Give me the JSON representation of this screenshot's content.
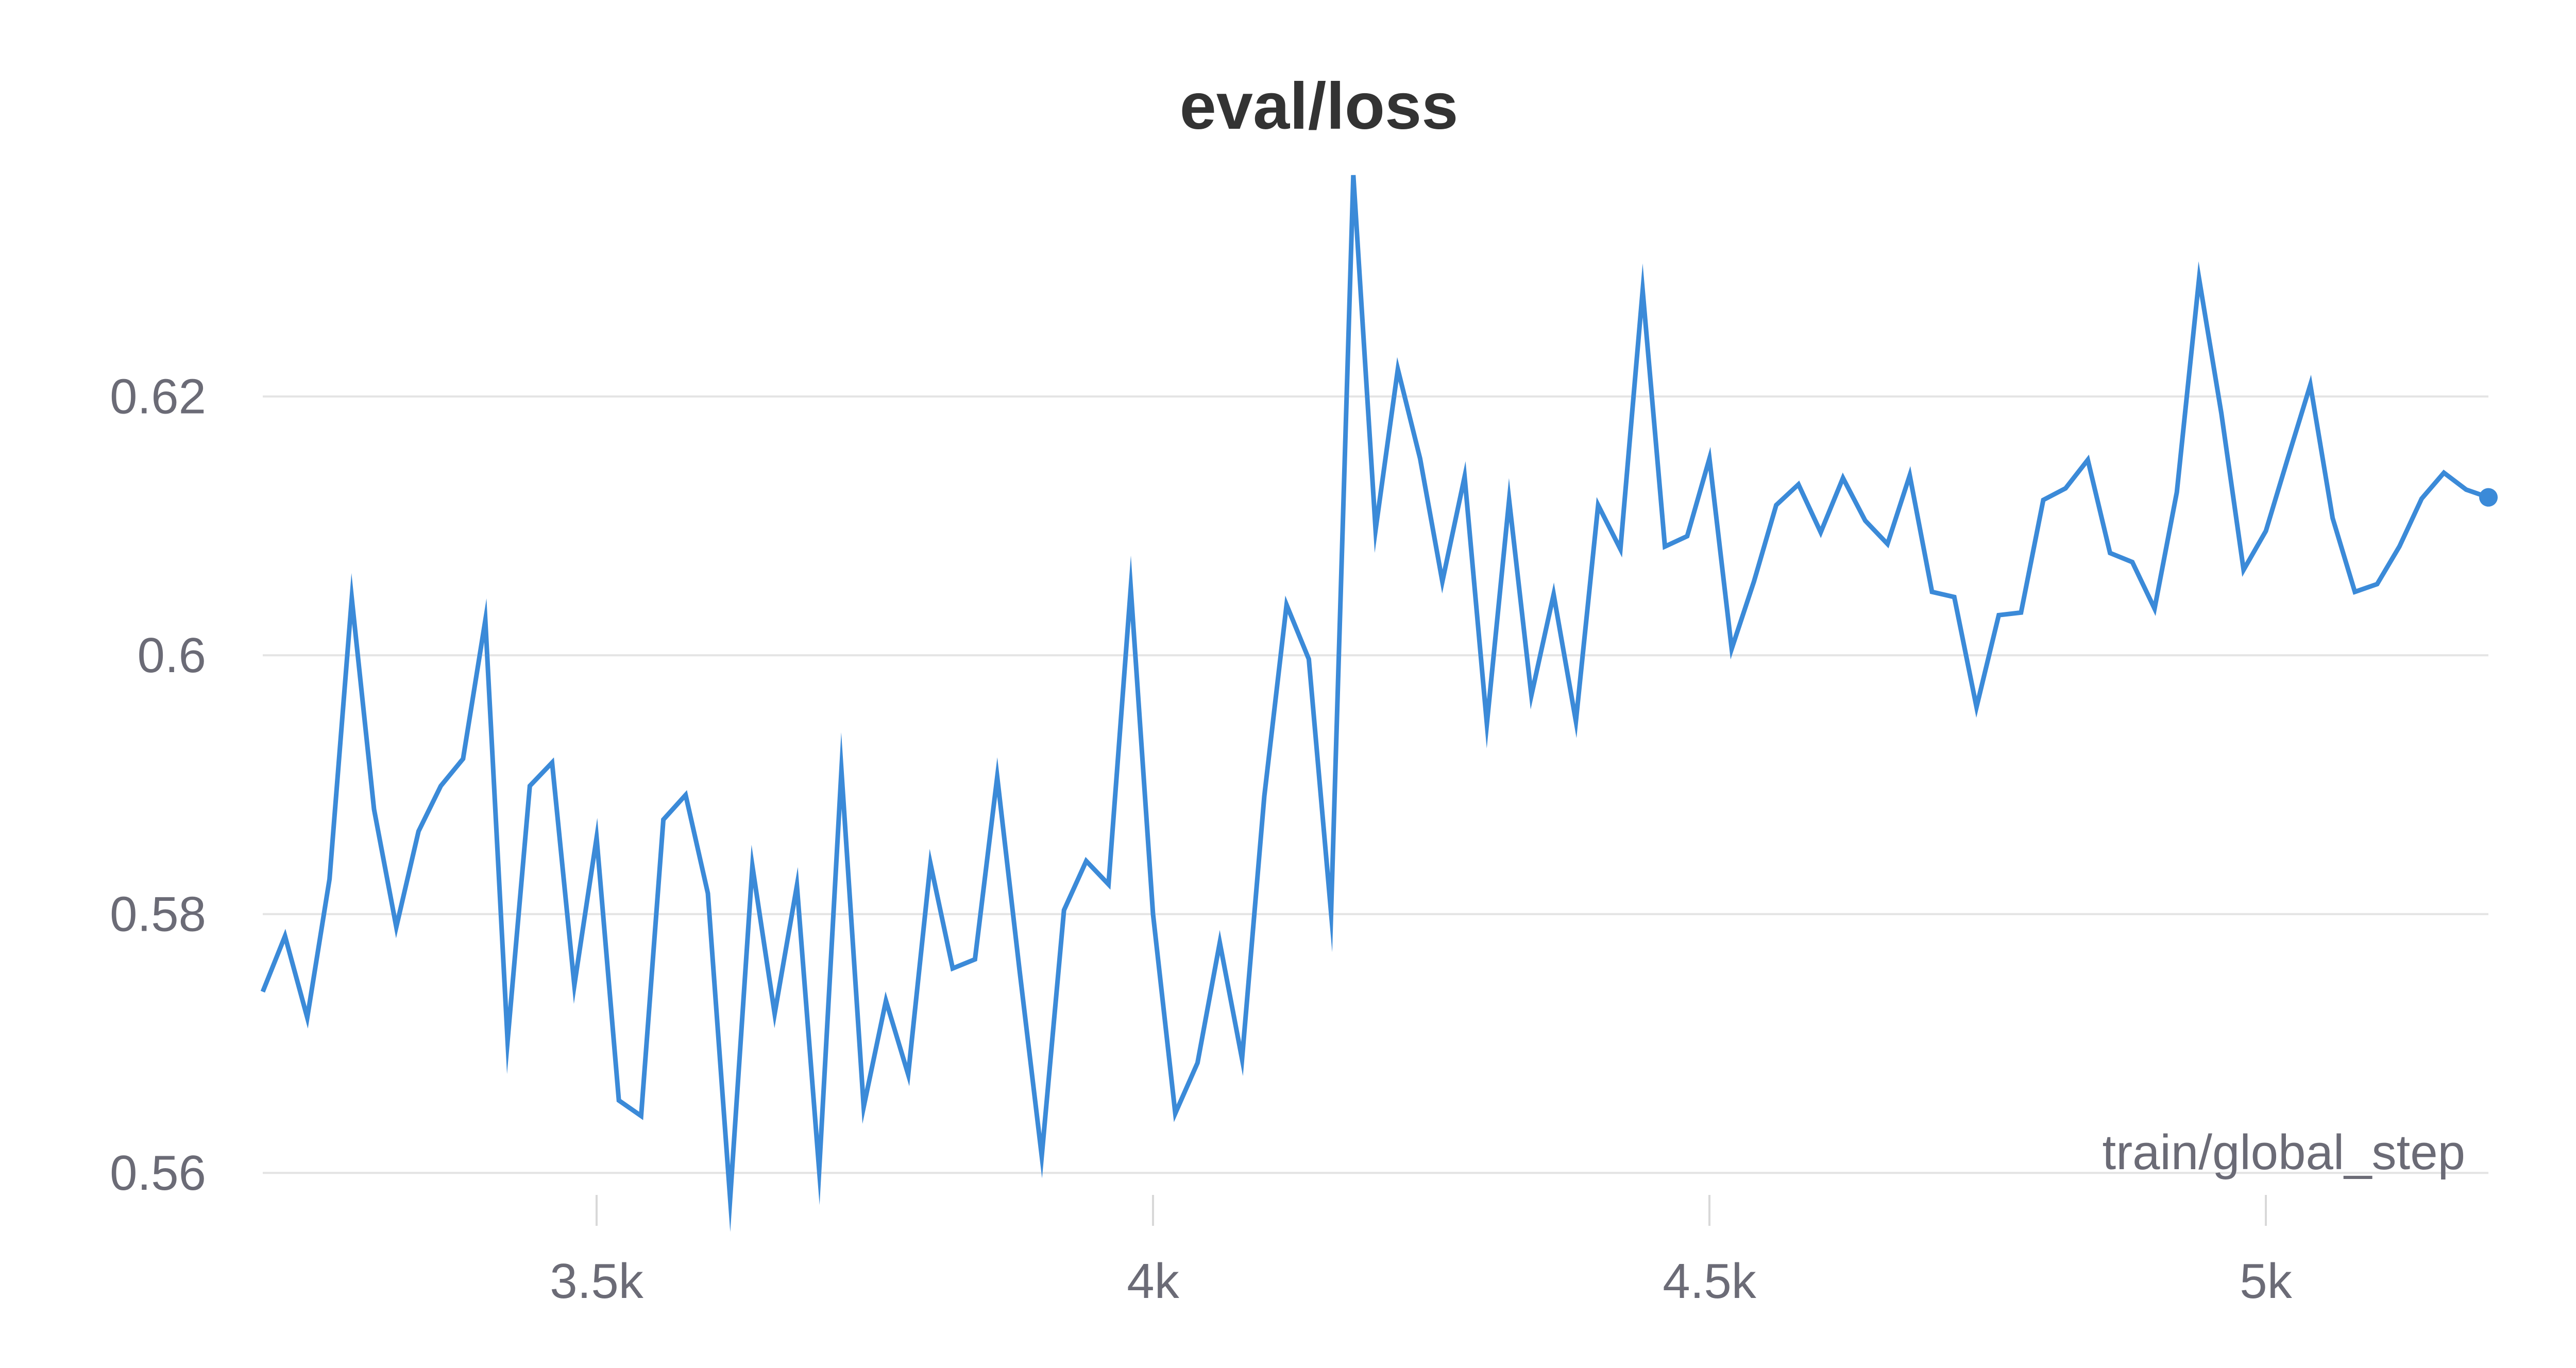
{
  "chart_data": {
    "type": "line",
    "title": "eval/loss",
    "xlabel": "train/global_step",
    "ylabel": "",
    "xlim": [
      3200,
      5200
    ],
    "ylim": [
      0.5575,
      0.6375
    ],
    "grid": true,
    "legend": "none",
    "x_ticks": [
      {
        "value": 3500,
        "label": "3.5k"
      },
      {
        "value": 4000,
        "label": "4k"
      },
      {
        "value": 4500,
        "label": "4.5k"
      },
      {
        "value": 5000,
        "label": "5k"
      }
    ],
    "y_ticks": [
      {
        "value": 0.56,
        "label": "0.56"
      },
      {
        "value": 0.58,
        "label": "0.58"
      },
      {
        "value": 0.6,
        "label": "0.6"
      },
      {
        "value": 0.62,
        "label": "0.62"
      }
    ],
    "series": [
      {
        "color": "#3b8ad8",
        "x": [
          3200,
          3220,
          3240,
          3260,
          3280,
          3300,
          3320,
          3340,
          3360,
          3380,
          3400,
          3420,
          3440,
          3460,
          3480,
          3500,
          3520,
          3540,
          3560,
          3580,
          3600,
          3620,
          3640,
          3660,
          3680,
          3700,
          3720,
          3740,
          3760,
          3780,
          3800,
          3820,
          3840,
          3860,
          3880,
          3900,
          3920,
          3940,
          3960,
          3980,
          4000,
          4020,
          4040,
          4060,
          4080,
          4100,
          4120,
          4140,
          4160,
          4180,
          4200,
          4220,
          4240,
          4260,
          4280,
          4300,
          4320,
          4340,
          4360,
          4380,
          4400,
          4420,
          4440,
          4460,
          4480,
          4500,
          4520,
          4540,
          4560,
          4580,
          4600,
          4620,
          4640,
          4660,
          4680,
          4700,
          4720,
          4740,
          4760,
          4780,
          4800,
          4820,
          4840,
          4860,
          4880,
          4900,
          4920,
          4940,
          4960,
          4980,
          5000,
          5020,
          5040,
          5060,
          5080,
          5100,
          5120,
          5140,
          5160,
          5180,
          5200
        ],
        "y": [
          0.574,
          0.5783,
          0.572,
          0.5827,
          0.6044,
          0.5881,
          0.579,
          0.5864,
          0.5899,
          0.592,
          0.6027,
          0.5702,
          0.5899,
          0.5917,
          0.5745,
          0.5859,
          0.5656,
          0.5644,
          0.5873,
          0.5892,
          0.5816,
          0.558,
          0.5837,
          0.5723,
          0.5822,
          0.5602,
          0.5911,
          0.5651,
          0.5733,
          0.5676,
          0.5839,
          0.5758,
          0.5765,
          0.5906,
          0.5757,
          0.5613,
          0.5803,
          0.5841,
          0.5823,
          0.6052,
          0.58,
          0.5646,
          0.5685,
          0.5778,
          0.5688,
          0.5891,
          0.6039,
          0.5997,
          0.5801,
          0.6371,
          0.6097,
          0.6221,
          0.6152,
          0.6057,
          0.6138,
          0.5947,
          0.612,
          0.5969,
          0.6047,
          0.5949,
          0.6116,
          0.6082,
          0.6282,
          0.6084,
          0.6092,
          0.6152,
          0.6005,
          0.6057,
          0.6116,
          0.6132,
          0.6095,
          0.6137,
          0.6104,
          0.6086,
          0.6139,
          0.6049,
          0.6045,
          0.596,
          0.6031,
          0.6033,
          0.612,
          0.6129,
          0.6151,
          0.6079,
          0.6072,
          0.6036,
          0.6126,
          0.6291,
          0.6187,
          0.6066,
          0.6096,
          0.6153,
          0.6209,
          0.6106,
          0.6049,
          0.6055,
          0.6084,
          0.6121,
          0.6141,
          0.6128,
          0.6122
        ]
      }
    ]
  }
}
